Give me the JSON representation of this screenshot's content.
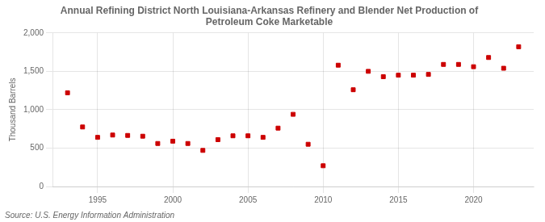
{
  "chart_data": {
    "type": "scatter",
    "title": "Annual Refining District North Louisiana-Arkansas Refinery and Blender Net Production of\nPetroleum Coke Marketable",
    "ylabel": "Thousand Barrels",
    "annotation": "Source: U.S. Energy Information Administration",
    "x": [
      1993,
      1994,
      1995,
      1996,
      1997,
      1998,
      1999,
      2000,
      2001,
      2002,
      2003,
      2004,
      2005,
      2006,
      2007,
      2008,
      2009,
      2010,
      2011,
      2012,
      2013,
      2014,
      2015,
      2016,
      2017,
      2018,
      2019,
      2020,
      2021,
      2022,
      2023
    ],
    "values": [
      1220,
      775,
      640,
      670,
      665,
      655,
      560,
      590,
      560,
      470,
      610,
      660,
      660,
      640,
      760,
      940,
      550,
      270,
      1580,
      1260,
      1500,
      1430,
      1450,
      1450,
      1460,
      1590,
      1590,
      1560,
      1680,
      1540,
      1820
    ],
    "color": "#cc0000",
    "marker": "square",
    "xlim": [
      1992,
      2024
    ],
    "xticks": [
      1995,
      2000,
      2005,
      2010,
      2015,
      2020
    ],
    "ylim": [
      0,
      2000
    ],
    "yticks": [
      0,
      500,
      {
        "value": 1000,
        "label": "1,000"
      },
      {
        "value": 1500,
        "label": "1,500"
      },
      {
        "value": 2000,
        "label": "2,000"
      }
    ],
    "grid": true
  }
}
